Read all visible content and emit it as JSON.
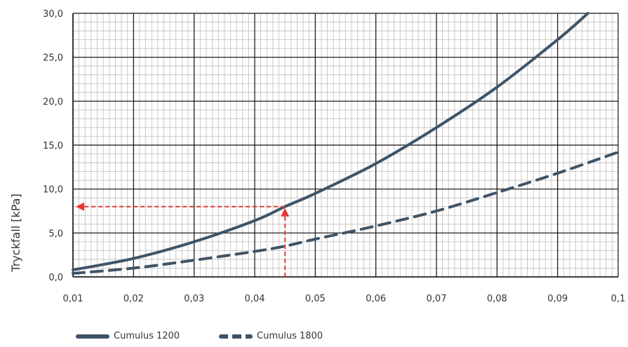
{
  "chart_data": {
    "type": "line",
    "ylabel": "Tryckfall [kPa]",
    "xlabel": "",
    "xlim": [
      0.01,
      0.1
    ],
    "ylim": [
      0,
      30
    ],
    "x_ticks": [
      "0,01",
      "0,02",
      "0,03",
      "0,04",
      "0,05",
      "0,06",
      "0,07",
      "0,08",
      "0,09",
      "0,1"
    ],
    "y_ticks": [
      "0,0",
      "5,0",
      "10,0",
      "15,0",
      "20,0",
      "25,0",
      "30,0"
    ],
    "grid": true,
    "legend_position": "bottom",
    "series": [
      {
        "name": "Cumulus 1200",
        "style": "solid",
        "color": "#3e5366",
        "points": [
          [
            0.01,
            0.8
          ],
          [
            0.02,
            2.1
          ],
          [
            0.03,
            4.0
          ],
          [
            0.04,
            6.4
          ],
          [
            0.045,
            8.0
          ],
          [
            0.05,
            9.5
          ],
          [
            0.06,
            12.9
          ],
          [
            0.07,
            17.0
          ],
          [
            0.08,
            21.6
          ],
          [
            0.09,
            27.0
          ],
          [
            0.095,
            30.0
          ]
        ]
      },
      {
        "name": "Cumulus 1800",
        "style": "dashed",
        "color": "#3e5366",
        "points": [
          [
            0.01,
            0.4
          ],
          [
            0.02,
            1.0
          ],
          [
            0.03,
            1.9
          ],
          [
            0.04,
            2.9
          ],
          [
            0.045,
            3.5
          ],
          [
            0.05,
            4.3
          ],
          [
            0.06,
            5.8
          ],
          [
            0.07,
            7.5
          ],
          [
            0.08,
            9.6
          ],
          [
            0.09,
            11.8
          ],
          [
            0.1,
            14.2
          ]
        ]
      }
    ],
    "annotation": {
      "color": "#e53935",
      "x": 0.045,
      "y": 8.0
    }
  }
}
